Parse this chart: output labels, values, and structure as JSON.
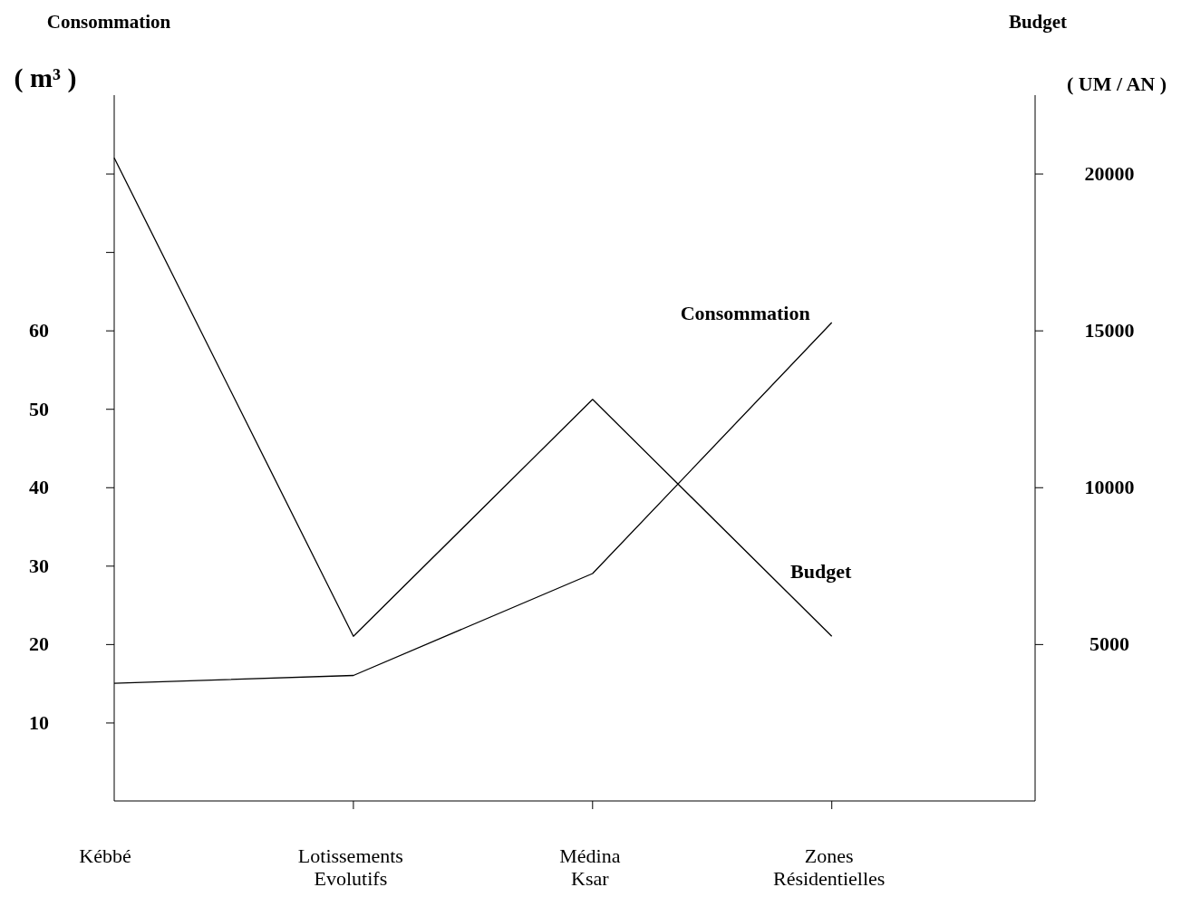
{
  "chart_data": {
    "type": "line",
    "ylabel": "Consommation",
    "y2label": "Budget",
    "annotations": [
      "( m³ )",
      "( UM / AN )"
    ],
    "categories": [
      "Kébbé",
      "Lotissements\nEvolutifs",
      "Médina\nKsar",
      "Zones\nRésidentielles"
    ],
    "series": [
      {
        "name": "Consommation",
        "color": "#000000",
        "values": [
          15,
          16,
          29,
          61
        ]
      },
      {
        "name": "Budget",
        "color": "#000000",
        "axis": "y2",
        "values": [
          20500,
          5250,
          12800,
          5250
        ]
      }
    ],
    "ylim": [
      0,
      90
    ],
    "yticks": [
      10,
      20,
      30,
      40,
      50,
      60,
      {
        "value": 70,
        "label": null
      },
      {
        "value": 80,
        "label": null
      }
    ],
    "y2lim": [
      0,
      22500
    ],
    "y2ticks": [
      5000,
      10000,
      15000,
      20000
    ],
    "line_style": "solid"
  }
}
